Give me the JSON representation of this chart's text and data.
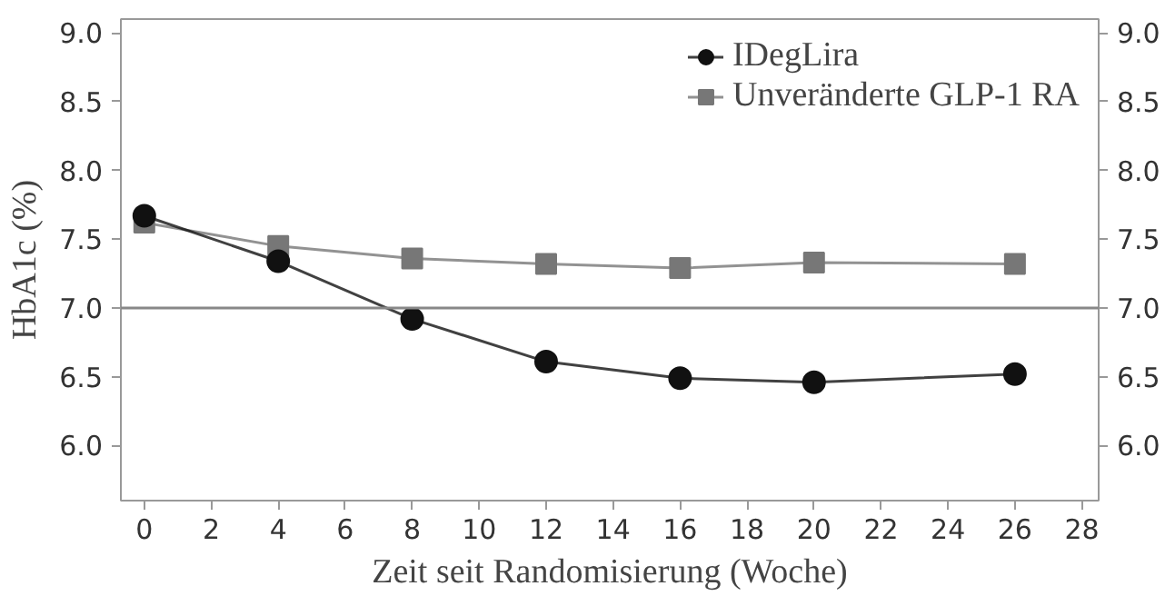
{
  "chart_data": {
    "type": "line",
    "xlabel": "Zeit seit Randomisierung (Woche)",
    "ylabel": "HbA1c (%)",
    "x": [
      0,
      4,
      8,
      12,
      16,
      20,
      26
    ],
    "series": [
      {
        "name": "IDegLira",
        "color": "#111111",
        "marker": "circle",
        "values": [
          7.67,
          7.34,
          6.92,
          6.61,
          6.49,
          6.46,
          6.52
        ]
      },
      {
        "name": "Unveränderte GLP-1 RA",
        "color": "#777777",
        "marker": "square",
        "values": [
          7.62,
          7.45,
          7.36,
          7.32,
          7.29,
          7.33,
          7.32
        ]
      }
    ],
    "xlim": [
      -0.7,
      28.5
    ],
    "xticks": [
      0,
      2,
      4,
      6,
      8,
      10,
      12,
      14,
      16,
      18,
      20,
      22,
      24,
      26,
      28
    ],
    "ylim": [
      5.6,
      9.1
    ],
    "yticks": [
      {
        "value": 6.0,
        "label": "6.0"
      },
      {
        "value": 6.5,
        "label": "6.5"
      },
      {
        "value": 7.0,
        "label": "7.0"
      },
      {
        "value": 7.5,
        "label": "7.5"
      },
      {
        "value": 8.0,
        "label": "8.0"
      },
      {
        "value": 8.5,
        "label": "8.5"
      },
      {
        "value": 9.0,
        "label": "9.0"
      }
    ],
    "y2lim": [
      5.6,
      9.1
    ],
    "y2ticks": [
      {
        "value": 6.0,
        "label": "6.0"
      },
      {
        "value": 6.5,
        "label": "6.5"
      },
      {
        "value": 7.0,
        "label": "7.0"
      },
      {
        "value": 7.5,
        "label": "7.5"
      },
      {
        "value": 8.0,
        "label": "8.0"
      },
      {
        "value": 8.5,
        "label": "8.5"
      },
      {
        "value": 9.0,
        "label": "9.0"
      }
    ],
    "ref_lines": [
      {
        "axis": "y",
        "value": 7.0,
        "color": "#888888"
      }
    ],
    "grid": false,
    "legend": "top right",
    "line_style": "solid"
  }
}
